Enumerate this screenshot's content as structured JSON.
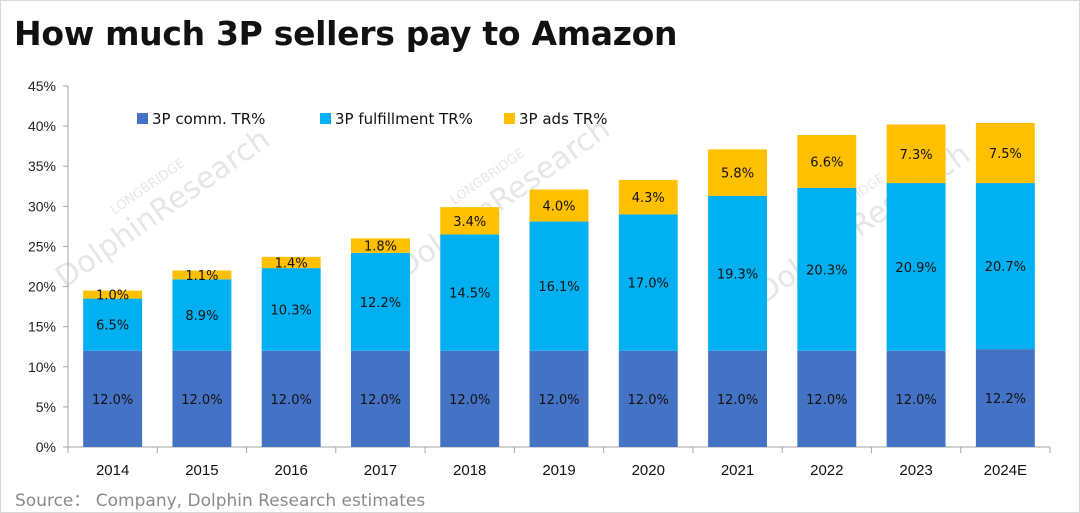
{
  "title": "How much 3P sellers pay to Amazon",
  "source": "Source： Company, Dolphin Research estimates",
  "watermark": {
    "line1": "LONGBRIDGE",
    "line2": "DolphinResearch"
  },
  "colors": {
    "comm": "#4472C4",
    "fulfillment": "#00B0F0",
    "ads": "#FFC000"
  },
  "chart_data": {
    "type": "bar",
    "stacked": true,
    "title": "How much 3P sellers pay to Amazon",
    "categories": [
      "2014",
      "2015",
      "2016",
      "2017",
      "2018",
      "2019",
      "2020",
      "2021",
      "2022",
      "2023",
      "2024E"
    ],
    "series": [
      {
        "name": "3P comm. TR%",
        "color": "#4472C4",
        "values": [
          12.0,
          12.0,
          12.0,
          12.0,
          12.0,
          12.0,
          12.0,
          12.0,
          12.0,
          12.0,
          12.2
        ],
        "labels": [
          "12.0%",
          "12.0%",
          "12.0%",
          "12.0%",
          "12.0%",
          "12.0%",
          "12.0%",
          "12.0%",
          "12.0%",
          "12.0%",
          "12.2%"
        ]
      },
      {
        "name": "3P fulfillment TR%",
        "color": "#00B0F0",
        "values": [
          6.5,
          8.9,
          10.3,
          12.2,
          14.5,
          16.1,
          17.0,
          19.3,
          20.3,
          20.9,
          20.7
        ],
        "labels": [
          "6.5%",
          "8.9%",
          "10.3%",
          "12.2%",
          "14.5%",
          "16.1%",
          "17.0%",
          "19.3%",
          "20.3%",
          "20.9%",
          "20.7%"
        ]
      },
      {
        "name": "3P ads TR%",
        "color": "#FFC000",
        "values": [
          1.0,
          1.1,
          1.4,
          1.8,
          3.4,
          4.0,
          4.3,
          5.8,
          6.6,
          7.3,
          7.5
        ],
        "labels": [
          "1.0%",
          "1.1%",
          "1.4%",
          "1.8%",
          "3.4%",
          "4.0%",
          "4.3%",
          "5.8%",
          "6.6%",
          "7.3%",
          "7.5%"
        ]
      }
    ],
    "ylim": [
      0,
      45
    ],
    "yticks": [
      "0%",
      "5%",
      "10%",
      "15%",
      "20%",
      "25%",
      "30%",
      "35%",
      "40%",
      "45%"
    ],
    "xlabel": "",
    "ylabel": "",
    "grid": false,
    "legend_position": "top-left"
  }
}
